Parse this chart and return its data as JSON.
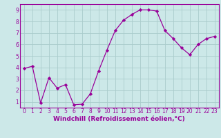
{
  "x": [
    0,
    1,
    2,
    3,
    4,
    5,
    6,
    7,
    8,
    9,
    10,
    11,
    12,
    13,
    14,
    15,
    16,
    17,
    18,
    19,
    20,
    21,
    22,
    23
  ],
  "y": [
    3.9,
    4.1,
    0.9,
    3.1,
    2.2,
    2.5,
    0.75,
    0.8,
    1.7,
    3.7,
    5.5,
    7.2,
    8.1,
    8.6,
    9.0,
    9.0,
    8.9,
    7.2,
    6.5,
    5.7,
    5.1,
    6.0,
    6.5,
    6.7
  ],
  "line_color": "#990099",
  "marker": "D",
  "marker_size": 2.2,
  "bg_color": "#cce8e8",
  "grid_color": "#aacccc",
  "xlabel": "Windchill (Refroidissement éolien,°C)",
  "xlabel_color": "#990099",
  "xlabel_fontsize": 6.5,
  "yticks": [
    1,
    2,
    3,
    4,
    5,
    6,
    7,
    8,
    9
  ],
  "xticks": [
    0,
    1,
    2,
    3,
    4,
    5,
    6,
    7,
    8,
    9,
    10,
    11,
    12,
    13,
    14,
    15,
    16,
    17,
    18,
    19,
    20,
    21,
    22,
    23
  ],
  "ylim": [
    0.5,
    9.5
  ],
  "xlim": [
    -0.5,
    23.5
  ],
  "tick_color": "#990099",
  "tick_fontsize": 5.5,
  "spine_color": "#990099",
  "line_width": 0.9
}
